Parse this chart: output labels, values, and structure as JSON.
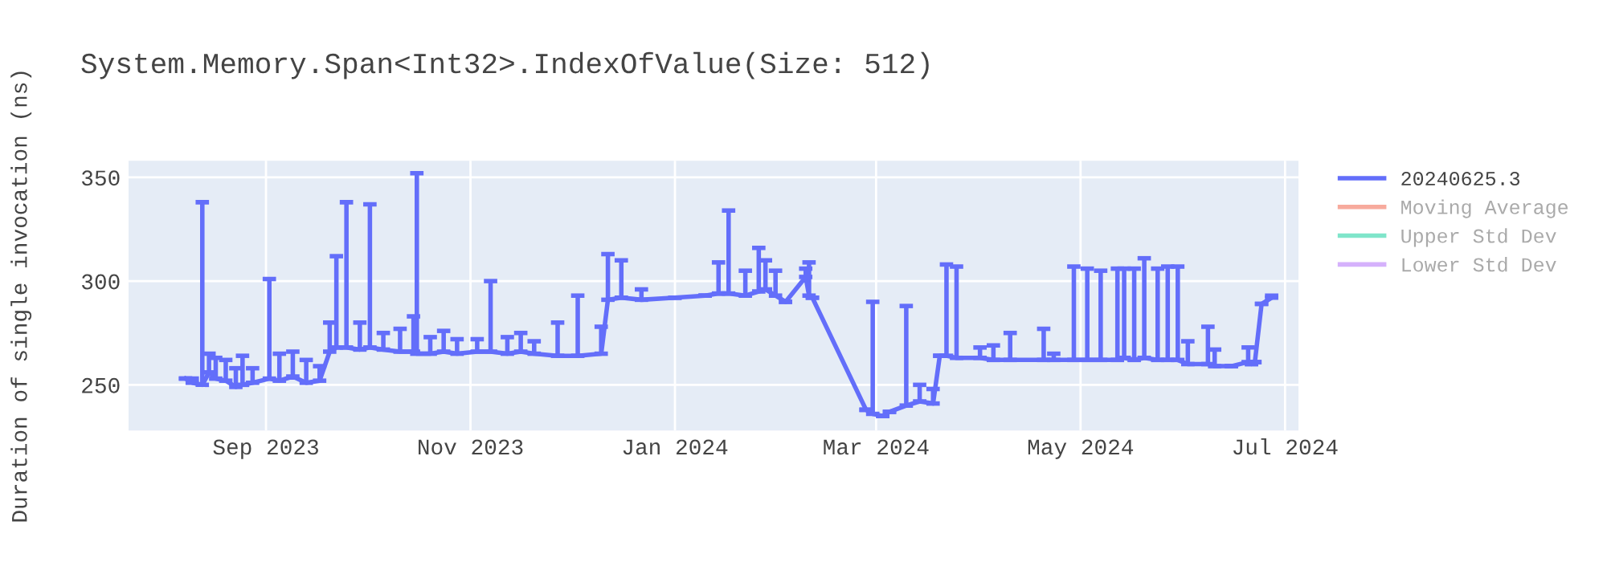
{
  "chart_data": {
    "type": "line",
    "title": "System.Memory.Span<Int32>.IndexOfValue(Size: 512)",
    "ylabel": "Duration of single invocation (ns)",
    "x": [
      "2023-08-08",
      "2023-08-10",
      "2023-08-13",
      "2023-08-15",
      "2023-08-17",
      "2023-08-20",
      "2023-08-23",
      "2023-08-25",
      "2023-08-28",
      "2023-09-02",
      "2023-09-05",
      "2023-09-09",
      "2023-09-13",
      "2023-09-17",
      "2023-09-20",
      "2023-09-22",
      "2023-09-25",
      "2023-09-29",
      "2023-10-02",
      "2023-10-06",
      "2023-10-11",
      "2023-10-15",
      "2023-10-16",
      "2023-10-20",
      "2023-10-24",
      "2023-10-28",
      "2023-11-03",
      "2023-11-07",
      "2023-11-12",
      "2023-11-16",
      "2023-11-20",
      "2023-11-27",
      "2023-12-03",
      "2023-12-10",
      "2023-12-12",
      "2023-12-16",
      "2023-12-22",
      "2024-01-01",
      "2024-01-10",
      "2024-01-14",
      "2024-01-17",
      "2024-01-22",
      "2024-01-26",
      "2024-01-28",
      "2024-01-31",
      "2024-02-03",
      "2024-02-09",
      "2024-02-10",
      "2024-02-11",
      "2024-02-27",
      "2024-02-29",
      "2024-03-03",
      "2024-03-05",
      "2024-03-10",
      "2024-03-14",
      "2024-03-18",
      "2024-03-20",
      "2024-03-22",
      "2024-03-25",
      "2024-04-01",
      "2024-04-05",
      "2024-04-10",
      "2024-04-20",
      "2024-04-23",
      "2024-04-29",
      "2024-05-03",
      "2024-05-07",
      "2024-05-12",
      "2024-05-14",
      "2024-05-17",
      "2024-05-20",
      "2024-05-24",
      "2024-05-27",
      "2024-05-30",
      "2024-06-02",
      "2024-06-08",
      "2024-06-10",
      "2024-06-15",
      "2024-06-20",
      "2024-06-21",
      "2024-06-22",
      "2024-06-24",
      "2024-06-27"
    ],
    "series": [
      {
        "name": "20240625.3",
        "color": "#636efa",
        "values": [
          253,
          251,
          250,
          256,
          253,
          252,
          249,
          250,
          251,
          253,
          252,
          254,
          251,
          252,
          266,
          268,
          268,
          267,
          268,
          267,
          266,
          266,
          265,
          265,
          266,
          265,
          266,
          266,
          265,
          266,
          265,
          264,
          264,
          265,
          291,
          292,
          291,
          292,
          293,
          294,
          294,
          293,
          295,
          296,
          293,
          290,
          302,
          293,
          292,
          238,
          236,
          235,
          237,
          240,
          242,
          241,
          264,
          264,
          263,
          263,
          262,
          262,
          262,
          262,
          262,
          262,
          262,
          262,
          263,
          262,
          263,
          262,
          262,
          262,
          260,
          260,
          259,
          259,
          261,
          260,
          261,
          289,
          292
        ],
        "errors": [
          null,
          [
            251,
            253
          ],
          [
            250,
            338
          ],
          [
            256,
            265
          ],
          [
            253,
            263
          ],
          [
            252,
            262
          ],
          [
            249,
            258
          ],
          [
            250,
            264
          ],
          [
            251,
            258
          ],
          [
            253,
            301
          ],
          [
            252,
            265
          ],
          [
            254,
            266
          ],
          [
            251,
            262
          ],
          [
            252,
            259
          ],
          [
            266,
            280
          ],
          [
            268,
            312
          ],
          [
            268,
            338
          ],
          [
            267,
            280
          ],
          [
            268,
            337
          ],
          [
            267,
            275
          ],
          [
            266,
            277
          ],
          [
            266,
            283
          ],
          [
            265,
            352
          ],
          [
            265,
            273
          ],
          [
            266,
            276
          ],
          [
            265,
            272
          ],
          [
            266,
            272
          ],
          [
            266,
            300
          ],
          [
            265,
            273
          ],
          [
            266,
            275
          ],
          [
            265,
            271
          ],
          [
            264,
            280
          ],
          [
            264,
            293
          ],
          [
            265,
            278
          ],
          [
            291,
            313
          ],
          [
            292,
            310
          ],
          [
            291,
            296
          ],
          null,
          null,
          [
            294,
            309
          ],
          [
            294,
            334
          ],
          [
            293,
            305
          ],
          [
            295,
            316
          ],
          [
            296,
            310
          ],
          [
            293,
            305
          ],
          null,
          [
            302,
            306
          ],
          [
            293,
            309
          ],
          null,
          null,
          [
            236,
            290
          ],
          null,
          null,
          [
            240,
            288
          ],
          [
            242,
            250
          ],
          [
            241,
            248
          ],
          null,
          [
            264,
            308
          ],
          [
            263,
            307
          ],
          [
            263,
            268
          ],
          [
            262,
            269
          ],
          [
            262,
            275
          ],
          [
            262,
            277
          ],
          [
            262,
            265
          ],
          [
            262,
            307
          ],
          [
            262,
            306
          ],
          [
            262,
            305
          ],
          [
            262,
            306
          ],
          [
            263,
            306
          ],
          [
            262,
            306
          ],
          [
            263,
            311
          ],
          [
            262,
            306
          ],
          [
            262,
            307
          ],
          [
            262,
            307
          ],
          [
            260,
            271
          ],
          [
            260,
            278
          ],
          [
            259,
            267
          ],
          null,
          [
            261,
            268
          ],
          null,
          null,
          null,
          [
            292,
            293
          ]
        ]
      },
      {
        "name": "Moving Average",
        "color": "#ef553b",
        "values": [
          null,
          null,
          null,
          null,
          null,
          null,
          null,
          null,
          null,
          null,
          null,
          null,
          null,
          null,
          null,
          null,
          null,
          null,
          null,
          null,
          null,
          null,
          null,
          null,
          null,
          null,
          null,
          null,
          null,
          null,
          null,
          null,
          null,
          null,
          null,
          null,
          null,
          null,
          null,
          null,
          null,
          null,
          null,
          null,
          null,
          null,
          null,
          null,
          null,
          null,
          null,
          null,
          null,
          null,
          null,
          null,
          null,
          null,
          null,
          null,
          null,
          null,
          null,
          null,
          null,
          null,
          null,
          null,
          null,
          null,
          null,
          null,
          null,
          null,
          null,
          null,
          null,
          null,
          null,
          null,
          null,
          null,
          null
        ]
      },
      {
        "name": "Upper Std Dev",
        "color": "#00cc96",
        "values": [
          null,
          null,
          null,
          null,
          null,
          null,
          null,
          null,
          null,
          null,
          null,
          null,
          null,
          null,
          null,
          null,
          null,
          null,
          null,
          null,
          null,
          null,
          null,
          null,
          null,
          null,
          null,
          null,
          null,
          null,
          null,
          null,
          null,
          null,
          null,
          null,
          null,
          null,
          null,
          null,
          null,
          null,
          null,
          null,
          null,
          null,
          null,
          null,
          null,
          null,
          null,
          null,
          null,
          null,
          null,
          null,
          null,
          null,
          null,
          null,
          null,
          null,
          null,
          null,
          null,
          null,
          null,
          null,
          null,
          null,
          null,
          null,
          null,
          null,
          null,
          null,
          null,
          null,
          null,
          null,
          null,
          null,
          null
        ]
      },
      {
        "name": "Lower Std Dev",
        "color": "#ab63fa",
        "values": [
          null,
          null,
          null,
          null,
          null,
          null,
          null,
          null,
          null,
          null,
          null,
          null,
          null,
          null,
          null,
          null,
          null,
          null,
          null,
          null,
          null,
          null,
          null,
          null,
          null,
          null,
          null,
          null,
          null,
          null,
          null,
          null,
          null,
          null,
          null,
          null,
          null,
          null,
          null,
          null,
          null,
          null,
          null,
          null,
          null,
          null,
          null,
          null,
          null,
          null,
          null,
          null,
          null,
          null,
          null,
          null,
          null,
          null,
          null,
          null,
          null,
          null,
          null,
          null,
          null,
          null,
          null,
          null,
          null,
          null,
          null,
          null,
          null,
          null,
          null,
          null,
          null,
          null,
          null,
          null,
          null,
          null,
          null
        ]
      }
    ],
    "xlim": [
      "2023-07-22",
      "2024-07-05"
    ],
    "xticks": [
      {
        "value": "2023-09-01",
        "label": "Sep 2023"
      },
      {
        "value": "2023-11-01",
        "label": "Nov 2023"
      },
      {
        "value": "2024-01-01",
        "label": "Jan 2024"
      },
      {
        "value": "2024-03-01",
        "label": "Mar 2024"
      },
      {
        "value": "2024-05-01",
        "label": "May 2024"
      },
      {
        "value": "2024-07-01",
        "label": "Jul 2024"
      }
    ],
    "ylim": [
      228,
      358
    ],
    "yticks": [
      250,
      300,
      350
    ],
    "grid": true,
    "legend": "top right",
    "marker": "none",
    "line_style": "solid"
  }
}
